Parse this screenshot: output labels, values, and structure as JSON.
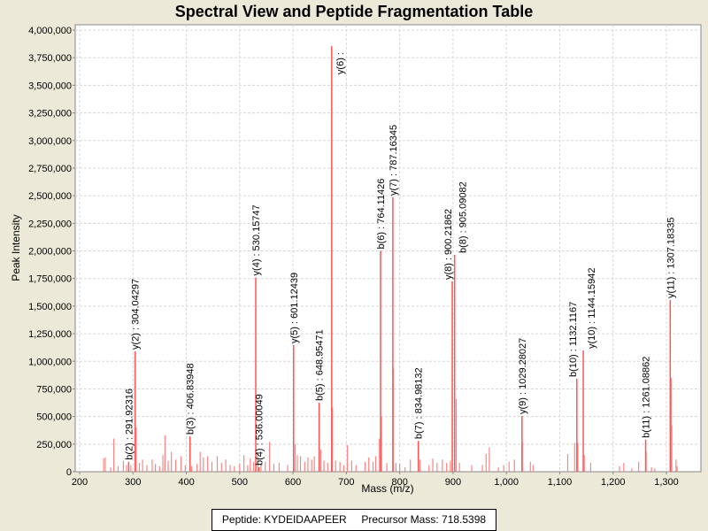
{
  "chart_data": {
    "type": "bar",
    "title": "Spectral View and Peptide Fragmentation Table",
    "xlabel": "Mass (m/z)",
    "ylabel": "Peak Intensity",
    "xlim": [
      192,
      1365
    ],
    "ylim": [
      0,
      4050000
    ],
    "xticks": [
      200,
      300,
      400,
      500,
      600,
      700,
      800,
      900,
      1000,
      1100,
      1200,
      1300
    ],
    "yticks": [
      0,
      250000,
      500000,
      750000,
      1000000,
      1250000,
      1500000,
      1750000,
      2000000,
      2250000,
      2500000,
      2750000,
      3000000,
      3250000,
      3500000,
      3750000,
      4000000
    ],
    "grid": true,
    "series_color": "#ff5555",
    "annotated_peaks": [
      {
        "label": "b(2) : 291.92316",
        "mz": 291.92,
        "intensity": 90000
      },
      {
        "label": "y(2) : 304.04297",
        "mz": 304.04,
        "intensity": 1090000
      },
      {
        "label": "b(3) : 406.83948",
        "mz": 406.84,
        "intensity": 320000
      },
      {
        "label": "y(4) : 530.15747",
        "mz": 530.16,
        "intensity": 1760000
      },
      {
        "label": "b(4) : 536.00049",
        "mz": 536.0,
        "intensity": 40000
      },
      {
        "label": "y(5) : 601.12439",
        "mz": 601.12,
        "intensity": 1146000
      },
      {
        "label": "b(5) : 648.95471",
        "mz": 648.95,
        "intensity": 625000
      },
      {
        "label": "y(6) :",
        "mz": 672.5,
        "intensity": 3855000
      },
      {
        "label": "b(6) : 764.11426",
        "mz": 764.11,
        "intensity": 2000000
      },
      {
        "label": "y(7) : 787.16345",
        "mz": 787.16,
        "intensity": 2485000
      },
      {
        "label": "b(7) : 834.98132",
        "mz": 834.98,
        "intensity": 280000
      },
      {
        "label": "y(8) : 900.21862",
        "mz": 898.5,
        "intensity": 1723000
      },
      {
        "label": "b(8) : 905.09082",
        "mz": 903.0,
        "intensity": 1964000
      },
      {
        "label": "y(9) : 1029.28027",
        "mz": 1029.28,
        "intensity": 505000
      },
      {
        "label": "b(10) : 1132.1167",
        "mz": 1132.12,
        "intensity": 842000
      },
      {
        "label": "y(10) : 1144.15942",
        "mz": 1144.16,
        "intensity": 1098000
      },
      {
        "label": "b(11) : 1261.08862",
        "mz": 1261.09,
        "intensity": 290000
      },
      {
        "label": "y(11) : 1307.18335",
        "mz": 1307.18,
        "intensity": 1555000
      }
    ],
    "other_peaks": [
      [
        245,
        120000
      ],
      [
        248,
        130000
      ],
      [
        258,
        40000
      ],
      [
        264,
        300000
      ],
      [
        272,
        50000
      ],
      [
        282,
        100000
      ],
      [
        288,
        60000
      ],
      [
        296,
        60000
      ],
      [
        306,
        400000
      ],
      [
        312,
        80000
      ],
      [
        318,
        110000
      ],
      [
        326,
        60000
      ],
      [
        336,
        110000
      ],
      [
        342,
        70000
      ],
      [
        350,
        50000
      ],
      [
        356,
        150000
      ],
      [
        360,
        330000
      ],
      [
        366,
        100000
      ],
      [
        372,
        180000
      ],
      [
        380,
        110000
      ],
      [
        390,
        140000
      ],
      [
        398,
        60000
      ],
      [
        410,
        50000
      ],
      [
        420,
        70000
      ],
      [
        426,
        180000
      ],
      [
        432,
        130000
      ],
      [
        440,
        140000
      ],
      [
        448,
        90000
      ],
      [
        458,
        140000
      ],
      [
        466,
        80000
      ],
      [
        474,
        110000
      ],
      [
        482,
        60000
      ],
      [
        490,
        50000
      ],
      [
        500,
        70000
      ],
      [
        508,
        150000
      ],
      [
        515,
        60000
      ],
      [
        520,
        120000
      ],
      [
        526,
        90000
      ],
      [
        534,
        170000
      ],
      [
        540,
        70000
      ],
      [
        548,
        90000
      ],
      [
        556,
        270000
      ],
      [
        564,
        70000
      ],
      [
        574,
        80000
      ],
      [
        590,
        60000
      ],
      [
        604,
        250000
      ],
      [
        608,
        150000
      ],
      [
        614,
        140000
      ],
      [
        622,
        90000
      ],
      [
        628,
        130000
      ],
      [
        635,
        110000
      ],
      [
        640,
        140000
      ],
      [
        652,
        200000
      ],
      [
        658,
        100000
      ],
      [
        665,
        80000
      ],
      [
        674,
        580000
      ],
      [
        680,
        100000
      ],
      [
        688,
        90000
      ],
      [
        695,
        60000
      ],
      [
        702,
        240000
      ],
      [
        710,
        100000
      ],
      [
        718,
        60000
      ],
      [
        735,
        90000
      ],
      [
        742,
        130000
      ],
      [
        750,
        90000
      ],
      [
        755,
        140000
      ],
      [
        762,
        300000
      ],
      [
        766,
        500000
      ],
      [
        776,
        80000
      ],
      [
        788,
        930000
      ],
      [
        793,
        80000
      ],
      [
        800,
        70000
      ],
      [
        810,
        40000
      ],
      [
        820,
        110000
      ],
      [
        838,
        110000
      ],
      [
        855,
        60000
      ],
      [
        862,
        120000
      ],
      [
        870,
        80000
      ],
      [
        880,
        110000
      ],
      [
        888,
        80000
      ],
      [
        895,
        100000
      ],
      [
        906,
        660000
      ],
      [
        912,
        80000
      ],
      [
        935,
        60000
      ],
      [
        955,
        60000
      ],
      [
        962,
        160000
      ],
      [
        968,
        220000
      ],
      [
        985,
        40000
      ],
      [
        995,
        60000
      ],
      [
        1005,
        90000
      ],
      [
        1015,
        110000
      ],
      [
        1030,
        260000
      ],
      [
        1045,
        90000
      ],
      [
        1050,
        60000
      ],
      [
        1115,
        160000
      ],
      [
        1128,
        260000
      ],
      [
        1134,
        260000
      ],
      [
        1146,
        150000
      ],
      [
        1158,
        80000
      ],
      [
        1212,
        50000
      ],
      [
        1220,
        80000
      ],
      [
        1235,
        30000
      ],
      [
        1248,
        90000
      ],
      [
        1262,
        180000
      ],
      [
        1272,
        40000
      ],
      [
        1278,
        30000
      ],
      [
        1309,
        850000
      ],
      [
        1310,
        420000
      ],
      [
        1318,
        110000
      ],
      [
        1320,
        50000
      ]
    ]
  },
  "legend": {
    "peptide": "Peptide: KYDEIDAAPEER",
    "precursor": "Precursor Mass: 718.5398"
  }
}
